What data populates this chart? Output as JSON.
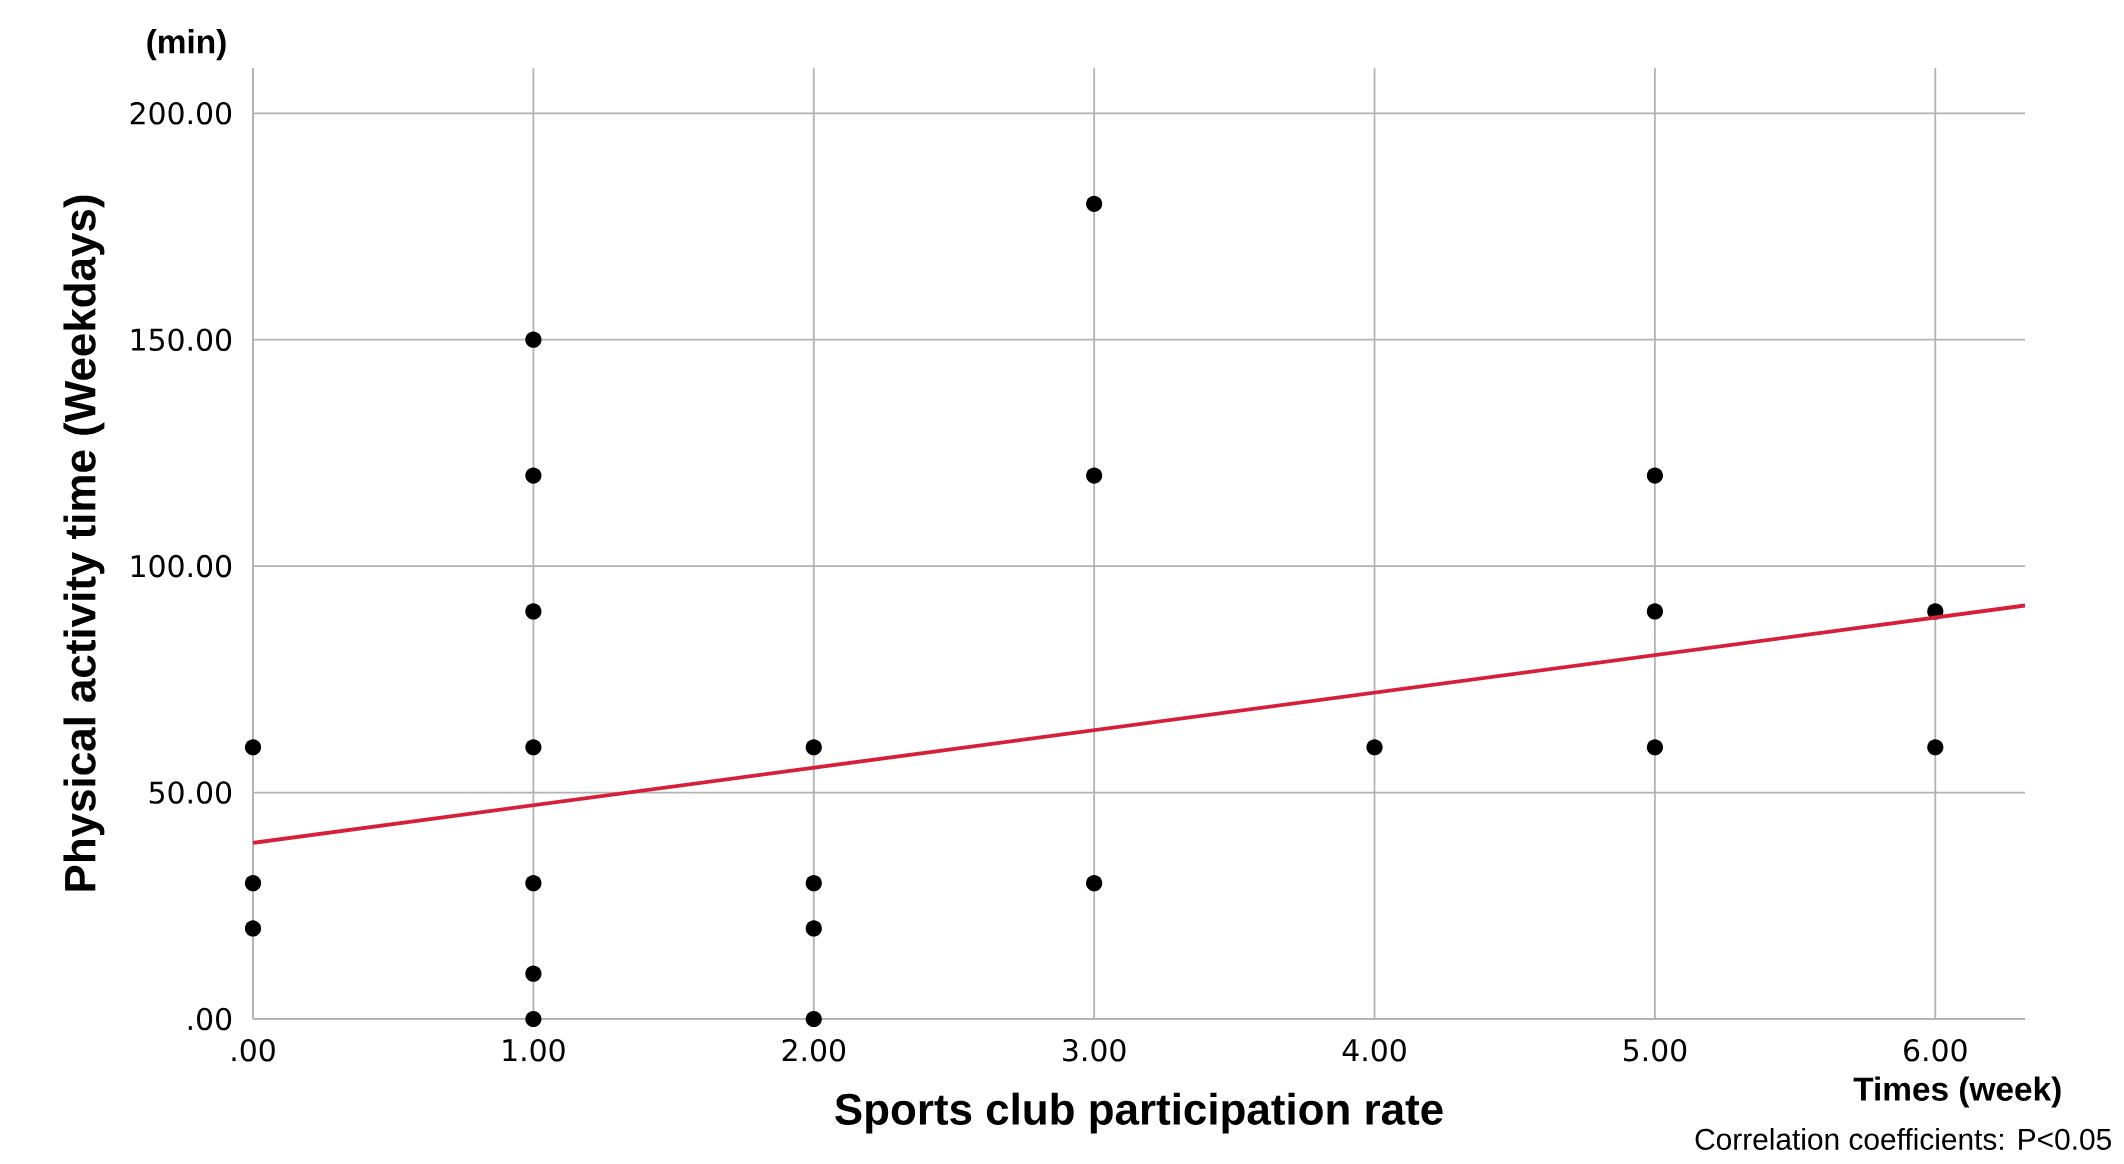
{
  "chart_data": {
    "type": "scatter",
    "xlabel": "Sports club participation rate",
    "ylabel": "Physical activity time (Weekdays)",
    "annotations": [
      "(min)",
      "Times (week)",
      "Correlation coefficients: P<0.05"
    ],
    "xlim": [
      0,
      6.32
    ],
    "ylim": [
      0,
      210
    ],
    "xticks": [
      {
        "value": 0,
        "label": ".00"
      },
      {
        "value": 1,
        "label": "1.00"
      },
      {
        "value": 2,
        "label": "2.00"
      },
      {
        "value": 3,
        "label": "3.00"
      },
      {
        "value": 4,
        "label": "4.00"
      },
      {
        "value": 5,
        "label": "5.00"
      },
      {
        "value": 6,
        "label": "6.00"
      }
    ],
    "yticks": [
      {
        "value": 0,
        "label": ".00"
      },
      {
        "value": 50,
        "label": "50.00"
      },
      {
        "value": 100,
        "label": "100.00"
      },
      {
        "value": 150,
        "label": "150.00"
      },
      {
        "value": 200,
        "label": "200.00"
      }
    ],
    "grid": true,
    "marker": "circle",
    "series": [
      {
        "color": "#000000",
        "x": [
          0,
          0,
          0,
          1,
          1,
          1,
          1,
          1,
          1,
          1,
          2,
          2,
          2,
          2,
          3,
          3,
          3,
          4,
          5,
          5,
          5,
          6,
          6
        ],
        "values": [
          60,
          30,
          20,
          150,
          120,
          90,
          60,
          30,
          10,
          0,
          60,
          30,
          20,
          0,
          180,
          120,
          30,
          60,
          120,
          90,
          60,
          90,
          60
        ]
      },
      {
        "type": "line",
        "marker": "none",
        "color": "#d6203a",
        "x": [
          0,
          6.32
        ],
        "values": [
          38.9,
          91.3
        ]
      }
    ]
  }
}
